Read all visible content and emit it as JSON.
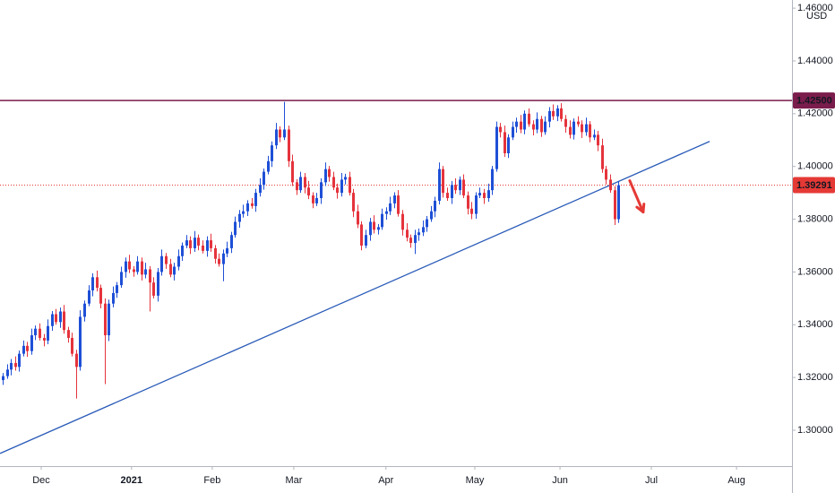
{
  "chart_data": {
    "type": "candlestick",
    "currency": "USD",
    "up_color": "#1e4fd6",
    "down_color": "#e5333c",
    "grid": false,
    "xlim": [
      -0.66,
      193.6
    ],
    "ylim": [
      1.2864,
      1.4631
    ],
    "yticks": [
      {
        "value": 1.3,
        "label": "1.30000"
      },
      {
        "value": 1.32,
        "label": "1.32000"
      },
      {
        "value": 1.34,
        "label": "1.34000"
      },
      {
        "value": 1.36,
        "label": "1.36000"
      },
      {
        "value": 1.38,
        "label": "1.38000"
      },
      {
        "value": 1.4,
        "label": "1.40000"
      },
      {
        "value": 1.42,
        "label": "1.42000"
      },
      {
        "value": 1.44,
        "label": "1.44000"
      },
      {
        "value": 1.46,
        "label": "1.46000"
      }
    ],
    "xticks": [
      {
        "value": 9.45,
        "label": "Dec"
      },
      {
        "value": 31.6,
        "label": "2021"
      },
      {
        "value": 51.4,
        "label": "Feb"
      },
      {
        "value": 71.4,
        "label": "Mar"
      },
      {
        "value": 94,
        "label": "Apr"
      },
      {
        "value": 115.8,
        "label": "May"
      },
      {
        "value": 136.7,
        "label": "Jun"
      },
      {
        "value": 159.1,
        "label": "Jul"
      },
      {
        "value": 180,
        "label": "Aug"
      }
    ],
    "level": {
      "value": 1.425,
      "label": "1.42500",
      "color": "#7a1c4c"
    },
    "last_price": {
      "value": 1.39291,
      "label": "1.39291",
      "color": "#e53935"
    },
    "trend_line": {
      "points": [
        [
          -0.66,
          1.2912
        ],
        [
          173.4,
          1.4095
        ]
      ],
      "color": "#2a5bb8"
    },
    "arrow": {
      "from": [
        153.8,
        1.3946
      ],
      "to": [
        157.1,
        1.3827
      ],
      "color": "#e53935"
    },
    "candles": [
      [
        1.319,
        1.3217,
        1.3172,
        1.3205
      ],
      [
        1.3205,
        1.325,
        1.3195,
        1.323
      ],
      [
        1.323,
        1.327,
        1.3208,
        1.3255
      ],
      [
        1.3255,
        1.328,
        1.3226,
        1.324
      ],
      [
        1.324,
        1.3302,
        1.3222,
        1.329
      ],
      [
        1.329,
        1.334,
        1.328,
        1.332
      ],
      [
        1.332,
        1.3335,
        1.3278,
        1.33
      ],
      [
        1.33,
        1.3385,
        1.3286,
        1.336
      ],
      [
        1.336,
        1.3397,
        1.3342,
        1.3385
      ],
      [
        1.3385,
        1.3405,
        1.334,
        1.335
      ],
      [
        1.335,
        1.3365,
        1.3318,
        1.334
      ],
      [
        1.334,
        1.342,
        1.3326,
        1.3395
      ],
      [
        1.3395,
        1.3452,
        1.3377,
        1.344
      ],
      [
        1.344,
        1.346,
        1.34,
        1.341
      ],
      [
        1.341,
        1.3465,
        1.3388,
        1.345
      ],
      [
        1.345,
        1.3475,
        1.3366,
        1.338
      ],
      [
        1.338,
        1.3392,
        1.3332,
        1.335
      ],
      [
        1.335,
        1.337,
        1.328,
        1.329
      ],
      [
        1.329,
        1.3305,
        1.312,
        1.324
      ],
      [
        1.324,
        1.3455,
        1.3226,
        1.343
      ],
      [
        1.343,
        1.3492,
        1.3412,
        1.348
      ],
      [
        1.348,
        1.355,
        1.347,
        1.353
      ],
      [
        1.353,
        1.3595,
        1.3508,
        1.358
      ],
      [
        1.358,
        1.3605,
        1.3526,
        1.354
      ],
      [
        1.354,
        1.3552,
        1.3462,
        1.348
      ],
      [
        1.348,
        1.35,
        1.3175,
        1.336
      ],
      [
        1.336,
        1.3495,
        1.3338,
        1.348
      ],
      [
        1.348,
        1.3545,
        1.3466,
        1.352
      ],
      [
        1.352,
        1.3562,
        1.3502,
        1.355
      ],
      [
        1.355,
        1.362,
        1.354,
        1.36
      ],
      [
        1.36,
        1.3655,
        1.3578,
        1.364
      ],
      [
        1.364,
        1.3665,
        1.3596,
        1.361
      ],
      [
        1.361,
        1.3622,
        1.3582,
        1.36
      ],
      [
        1.36,
        1.366,
        1.359,
        1.364
      ],
      [
        1.364,
        1.3655,
        1.3568,
        1.359
      ],
      [
        1.359,
        1.3635,
        1.3576,
        1.361
      ],
      [
        1.361,
        1.3622,
        1.345,
        1.356
      ],
      [
        1.356,
        1.358,
        1.35,
        1.351
      ],
      [
        1.351,
        1.3615,
        1.3488,
        1.36
      ],
      [
        1.36,
        1.3685,
        1.3586,
        1.366
      ],
      [
        1.366,
        1.3672,
        1.3612,
        1.363
      ],
      [
        1.363,
        1.365,
        1.358,
        1.359
      ],
      [
        1.359,
        1.3635,
        1.3568,
        1.362
      ],
      [
        1.362,
        1.3685,
        1.3606,
        1.366
      ],
      [
        1.366,
        1.3712,
        1.3642,
        1.37
      ],
      [
        1.37,
        1.374,
        1.369,
        1.372
      ],
      [
        1.372,
        1.3735,
        1.3668,
        1.369
      ],
      [
        1.369,
        1.3755,
        1.3676,
        1.373
      ],
      [
        1.373,
        1.3742,
        1.3682,
        1.37
      ],
      [
        1.37,
        1.372,
        1.367,
        1.368
      ],
      [
        1.368,
        1.3735,
        1.3658,
        1.372
      ],
      [
        1.372,
        1.3745,
        1.3676,
        1.369
      ],
      [
        1.369,
        1.3702,
        1.3632,
        1.365
      ],
      [
        1.365,
        1.367,
        1.362,
        1.363
      ],
      [
        1.363,
        1.3685,
        1.3565,
        1.367
      ],
      [
        1.367,
        1.3715,
        1.3656,
        1.369
      ],
      [
        1.369,
        1.3752,
        1.3672,
        1.374
      ],
      [
        1.374,
        1.381,
        1.373,
        1.379
      ],
      [
        1.379,
        1.3835,
        1.3768,
        1.382
      ],
      [
        1.382,
        1.3855,
        1.3806,
        1.383
      ],
      [
        1.383,
        1.3872,
        1.3812,
        1.386
      ],
      [
        1.386,
        1.388,
        1.384,
        1.385
      ],
      [
        1.385,
        1.3915,
        1.3828,
        1.39
      ],
      [
        1.39,
        1.3955,
        1.3886,
        1.393
      ],
      [
        1.393,
        1.3992,
        1.3912,
        1.398
      ],
      [
        1.398,
        1.404,
        1.397,
        1.402
      ],
      [
        1.402,
        1.4095,
        1.3998,
        1.408
      ],
      [
        1.408,
        1.4165,
        1.4066,
        1.414
      ],
      [
        1.414,
        1.4152,
        1.4092,
        1.411
      ],
      [
        1.411,
        1.4245,
        1.41,
        1.414
      ],
      [
        1.414,
        1.4155,
        1.3998,
        1.402
      ],
      [
        1.402,
        1.4045,
        1.3926,
        1.394
      ],
      [
        1.394,
        1.3952,
        1.3892,
        1.391
      ],
      [
        1.391,
        1.398,
        1.39,
        1.396
      ],
      [
        1.396,
        1.3975,
        1.3898,
        1.392
      ],
      [
        1.392,
        1.3945,
        1.3876,
        1.389
      ],
      [
        1.389,
        1.3902,
        1.3842,
        1.386
      ],
      [
        1.386,
        1.39,
        1.385,
        1.388
      ],
      [
        1.388,
        1.3955,
        1.3858,
        1.394
      ],
      [
        1.394,
        1.4015,
        1.3926,
        1.399
      ],
      [
        1.399,
        1.4002,
        1.3942,
        1.396
      ],
      [
        1.396,
        1.398,
        1.391,
        1.392
      ],
      [
        1.392,
        1.3935,
        1.3878,
        1.39
      ],
      [
        1.39,
        1.3975,
        1.3886,
        1.395
      ],
      [
        1.395,
        1.3972,
        1.3932,
        1.396
      ],
      [
        1.396,
        1.398,
        1.389,
        1.39
      ],
      [
        1.39,
        1.3915,
        1.3808,
        1.383
      ],
      [
        1.383,
        1.3855,
        1.3766,
        1.378
      ],
      [
        1.378,
        1.3792,
        1.3682,
        1.37
      ],
      [
        1.37,
        1.376,
        1.369,
        1.374
      ],
      [
        1.374,
        1.3805,
        1.3718,
        1.379
      ],
      [
        1.379,
        1.3815,
        1.3746,
        1.376
      ],
      [
        1.376,
        1.3782,
        1.3742,
        1.377
      ],
      [
        1.377,
        1.384,
        1.376,
        1.382
      ],
      [
        1.382,
        1.3845,
        1.3798,
        1.383
      ],
      [
        1.383,
        1.3885,
        1.3816,
        1.386
      ],
      [
        1.386,
        1.3902,
        1.3842,
        1.389
      ],
      [
        1.389,
        1.391,
        1.381,
        1.382
      ],
      [
        1.382,
        1.3835,
        1.3738,
        1.376
      ],
      [
        1.376,
        1.3785,
        1.3716,
        1.373
      ],
      [
        1.373,
        1.3742,
        1.3692,
        1.371
      ],
      [
        1.371,
        1.376,
        1.3668,
        1.374
      ],
      [
        1.374,
        1.3765,
        1.3718,
        1.375
      ],
      [
        1.375,
        1.3795,
        1.3736,
        1.377
      ],
      [
        1.377,
        1.3812,
        1.3752,
        1.38
      ],
      [
        1.38,
        1.385,
        1.379,
        1.383
      ],
      [
        1.383,
        1.3885,
        1.3808,
        1.387
      ],
      [
        1.387,
        1.4015,
        1.3856,
        1.399
      ],
      [
        1.399,
        1.4002,
        1.3882,
        1.39
      ],
      [
        1.39,
        1.392,
        1.387,
        1.388
      ],
      [
        1.388,
        1.3945,
        1.3858,
        1.393
      ],
      [
        1.393,
        1.3955,
        1.3896,
        1.391
      ],
      [
        1.391,
        1.3962,
        1.3892,
        1.395
      ],
      [
        1.395,
        1.397,
        1.388,
        1.389
      ],
      [
        1.389,
        1.3905,
        1.3818,
        1.384
      ],
      [
        1.384,
        1.3865,
        1.38,
        1.382
      ],
      [
        1.382,
        1.3902,
        1.3802,
        1.389
      ],
      [
        1.389,
        1.392,
        1.388,
        1.39
      ],
      [
        1.39,
        1.3915,
        1.3858,
        1.388
      ],
      [
        1.388,
        1.3935,
        1.3866,
        1.391
      ],
      [
        1.391,
        1.4002,
        1.3892,
        1.399
      ],
      [
        1.399,
        1.417,
        1.398,
        1.415
      ],
      [
        1.415,
        1.4165,
        1.411,
        1.413
      ],
      [
        1.413,
        1.4155,
        1.4036,
        1.405
      ],
      [
        1.405,
        1.4122,
        1.4032,
        1.411
      ],
      [
        1.411,
        1.417,
        1.41,
        1.415
      ],
      [
        1.415,
        1.4185,
        1.4128,
        1.417
      ],
      [
        1.417,
        1.4195,
        1.4126,
        1.414
      ],
      [
        1.414,
        1.4212,
        1.4122,
        1.42
      ],
      [
        1.42,
        1.422,
        1.415,
        1.416
      ],
      [
        1.416,
        1.4175,
        1.4118,
        1.414
      ],
      [
        1.414,
        1.4205,
        1.4126,
        1.418
      ],
      [
        1.418,
        1.4192,
        1.4112,
        1.413
      ],
      [
        1.413,
        1.419,
        1.412,
        1.417
      ],
      [
        1.417,
        1.4225,
        1.4148,
        1.421
      ],
      [
        1.421,
        1.4235,
        1.4176,
        1.419
      ],
      [
        1.419,
        1.4232,
        1.4172,
        1.422
      ],
      [
        1.422,
        1.424,
        1.417,
        1.418
      ],
      [
        1.418,
        1.4195,
        1.4128,
        1.415
      ],
      [
        1.415,
        1.4175,
        1.4106,
        1.412
      ],
      [
        1.412,
        1.4182,
        1.4102,
        1.417
      ],
      [
        1.417,
        1.419,
        1.415,
        1.416
      ],
      [
        1.416,
        1.4175,
        1.4108,
        1.413
      ],
      [
        1.413,
        1.4185,
        1.4116,
        1.416
      ],
      [
        1.416,
        1.4172,
        1.4092,
        1.411
      ],
      [
        1.411,
        1.414,
        1.41,
        1.412
      ],
      [
        1.412,
        1.4135,
        1.4058,
        1.408
      ],
      [
        1.408,
        1.4105,
        1.3976,
        1.399
      ],
      [
        1.399,
        1.4002,
        1.3932,
        1.395
      ],
      [
        1.395,
        1.397,
        1.39,
        1.391
      ],
      [
        1.391,
        1.3925,
        1.3778,
        1.38
      ],
      [
        1.38,
        1.3945,
        1.3786,
        1.39291
      ]
    ]
  }
}
